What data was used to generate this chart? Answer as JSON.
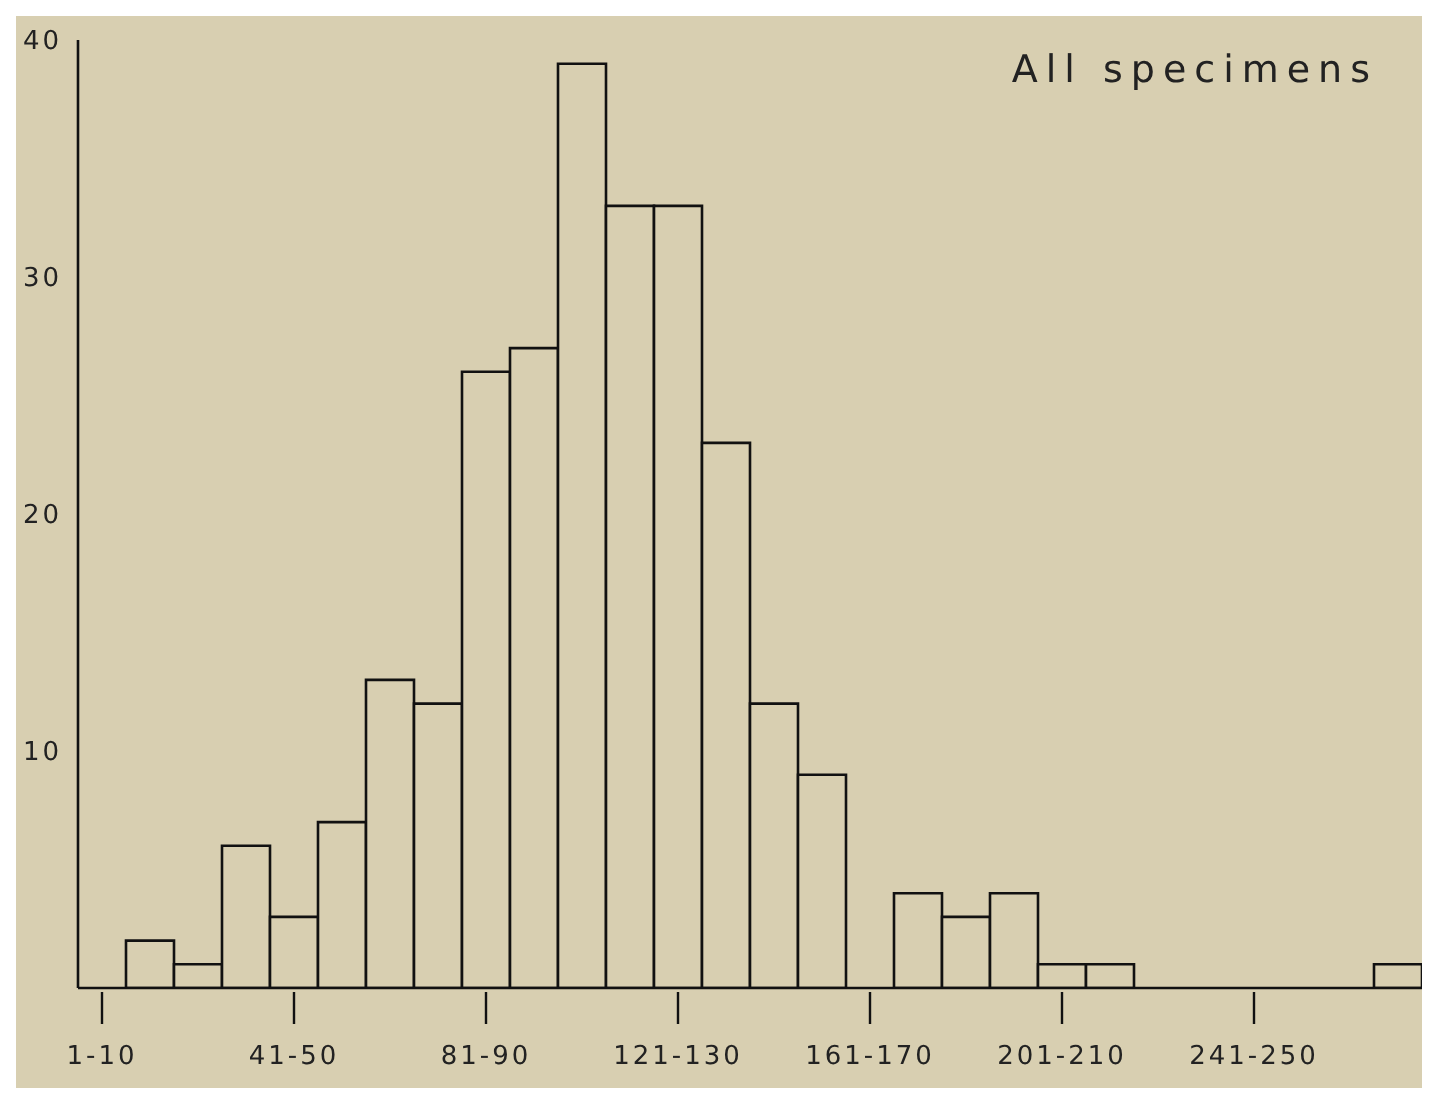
{
  "chart_data": {
    "type": "bar",
    "title": "All specimens",
    "categories": [
      "1-10",
      null,
      null,
      null,
      "41-50",
      null,
      null,
      null,
      "81-90",
      null,
      null,
      null,
      "121-130",
      null,
      null,
      null,
      "161-170",
      null,
      null,
      null,
      "201-210",
      null,
      null,
      null,
      "241-250",
      null,
      null,
      null
    ],
    "values": [
      0,
      2,
      1,
      6,
      3,
      7,
      13,
      12,
      26,
      27,
      39,
      33,
      33,
      23,
      12,
      9,
      0,
      4,
      3,
      4,
      1,
      1,
      0,
      0,
      0,
      0,
      0,
      1
    ],
    "color": "#d8cfb1",
    "ylim": [
      0,
      40
    ],
    "yticks": [
      10,
      20,
      30,
      40
    ],
    "grid": false,
    "legend": false
  }
}
